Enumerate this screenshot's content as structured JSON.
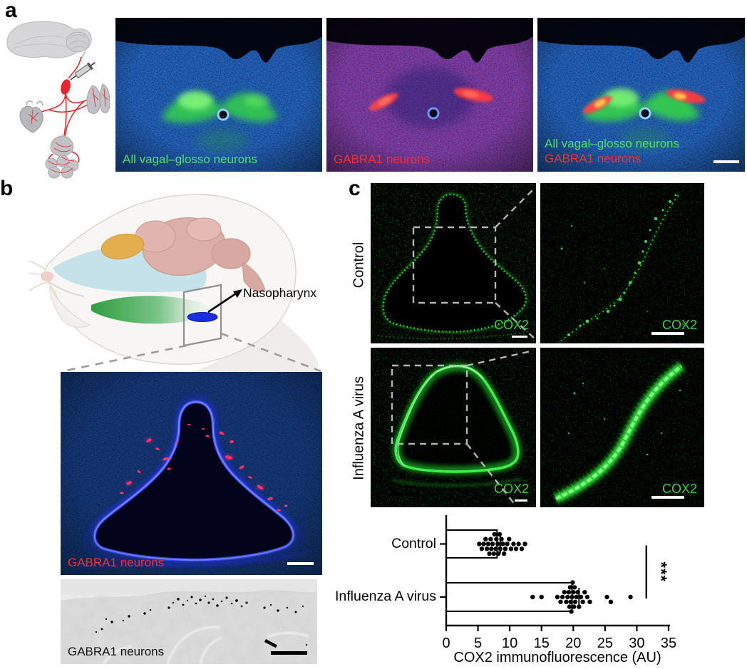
{
  "colors": {
    "fluor_green_label": "#4fe065",
    "fluor_red_label": "#f5302c",
    "cox2_green": "#3ecb43",
    "dapi_blue": "#2335e8",
    "bar_fill": "#ffffff",
    "bar_stroke": "#000000"
  },
  "panel_a": {
    "label": "a",
    "image1_caption": "All vagal–glosso neurons",
    "image2_caption": "GABRA1 neurons",
    "image3_caption_line1": "All vagal–glosso neurons",
    "image3_caption_line2": "GABRA1 neurons"
  },
  "panel_b": {
    "label": "b",
    "annotation": "Nasopharynx",
    "fluor_caption": "GABRA1 neurons",
    "gray_caption": "GABRA1 neurons"
  },
  "panel_c": {
    "label": "c",
    "row_labels": [
      "Control",
      "Influenza A virus"
    ],
    "marker_labels": [
      "COX2",
      "COX2",
      "COX2",
      "COX2"
    ]
  },
  "chart_data": {
    "type": "bar",
    "orientation": "horizontal",
    "title": "",
    "xlabel": "COX2 immunofluorescence (AU)",
    "categories": [
      "Control",
      "Influenza A virus"
    ],
    "values": [
      8.0,
      19.8
    ],
    "error_plus": [
      0.5,
      1.1
    ],
    "points": [
      [
        5.2,
        5.6,
        5.9,
        6.2,
        6.4,
        6.6,
        6.8,
        7.0,
        7.1,
        7.3,
        7.5,
        7.6,
        7.8,
        7.9,
        8.1,
        8.2,
        8.4,
        8.5,
        8.7,
        8.9,
        9.1,
        9.3,
        9.6,
        9.9,
        10.2,
        10.6,
        11.0,
        11.4,
        11.9,
        12.4
      ],
      [
        13.6,
        15.0,
        17.5,
        18.0,
        18.3,
        18.6,
        18.9,
        19.1,
        19.3,
        19.4,
        19.5,
        19.6,
        19.7,
        19.8,
        19.9,
        20.0,
        20.1,
        20.2,
        20.3,
        20.5,
        20.7,
        20.9,
        21.2,
        21.5,
        21.8,
        22.2,
        22.6,
        25.3,
        25.9,
        29.0
      ]
    ],
    "xlim": [
      0,
      35
    ],
    "xticks": [
      0,
      5,
      10,
      15,
      20,
      25,
      30,
      35
    ],
    "grid": false,
    "legend": "none",
    "point_color": "#000000",
    "bar_fill": "#ffffff",
    "bar_stroke": "#000000",
    "significance": {
      "label": "***",
      "x": 31.5,
      "compares": [
        "Control",
        "Influenza A virus"
      ]
    }
  }
}
